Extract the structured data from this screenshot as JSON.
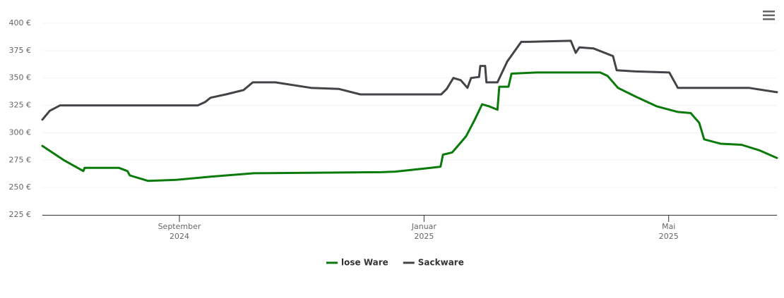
{
  "chart_data": {
    "type": "line",
    "xlim": [
      5.76,
      17.77
    ],
    "xticks": [
      {
        "value": 8,
        "label": [
          "September",
          "2024"
        ]
      },
      {
        "value": 12,
        "label": [
          "Januar",
          "2025"
        ]
      },
      {
        "value": 16,
        "label": [
          "Mai",
          "2025"
        ]
      }
    ],
    "ylim": [
      225,
      400
    ],
    "yticks": [
      {
        "value": 225,
        "label": "225 €"
      },
      {
        "value": 250,
        "label": "250 €"
      },
      {
        "value": 275,
        "label": "275 €"
      },
      {
        "value": 300,
        "label": "300 €"
      },
      {
        "value": 325,
        "label": "325 €"
      },
      {
        "value": 350,
        "label": "350 €"
      },
      {
        "value": 375,
        "label": "375 €"
      },
      {
        "value": 400,
        "label": "400 €"
      }
    ],
    "grid": true,
    "legend": "bottom",
    "series": [
      {
        "name": "lose Ware",
        "color": "#0a7a0a",
        "x": [
          5.76,
          6.11,
          6.43,
          6.45,
          7.01,
          7.15,
          7.19,
          7.49,
          7.95,
          8.53,
          9.22,
          11.3,
          11.53,
          12.11,
          12.27,
          12.31,
          12.46,
          12.6,
          12.69,
          12.83,
          12.95,
          13.07,
          13.2,
          13.23,
          13.38,
          13.43,
          13.84,
          14.88,
          15.0,
          15.17,
          15.46,
          15.81,
          16.15,
          16.36,
          16.5,
          16.58,
          16.85,
          17.19,
          17.48,
          17.77
        ],
        "values": [
          288,
          275,
          265,
          268,
          268,
          265,
          261,
          256,
          257,
          260,
          263,
          264,
          264.5,
          268,
          269,
          280,
          282,
          291,
          297,
          312,
          326,
          324,
          321,
          342,
          342,
          354,
          355,
          355,
          352,
          341,
          333,
          324,
          319,
          318,
          309,
          294,
          290,
          289,
          284,
          277
        ]
      },
      {
        "name": "Sackware",
        "color": "#434348",
        "x": [
          5.76,
          5.88,
          6.05,
          8.3,
          8.42,
          8.51,
          8.76,
          9.05,
          9.2,
          9.57,
          10.15,
          10.61,
          10.96,
          11.3,
          12.28,
          12.37,
          12.48,
          12.6,
          12.71,
          12.77,
          12.9,
          12.92,
          13.0,
          13.02,
          13.2,
          13.36,
          13.59,
          13.71,
          14.4,
          14.48,
          14.54,
          14.77,
          15.09,
          15.15,
          15.46,
          16.01,
          16.15,
          17.31,
          17.77
        ],
        "values": [
          312,
          320,
          325,
          325,
          328,
          332,
          335,
          339,
          346,
          346,
          341,
          340,
          335,
          335,
          335,
          340,
          350,
          348,
          341,
          350,
          351,
          361,
          361,
          346,
          346,
          365,
          383,
          383,
          384,
          373,
          378,
          377,
          370,
          357,
          356,
          355,
          341,
          341,
          337
        ]
      }
    ]
  }
}
